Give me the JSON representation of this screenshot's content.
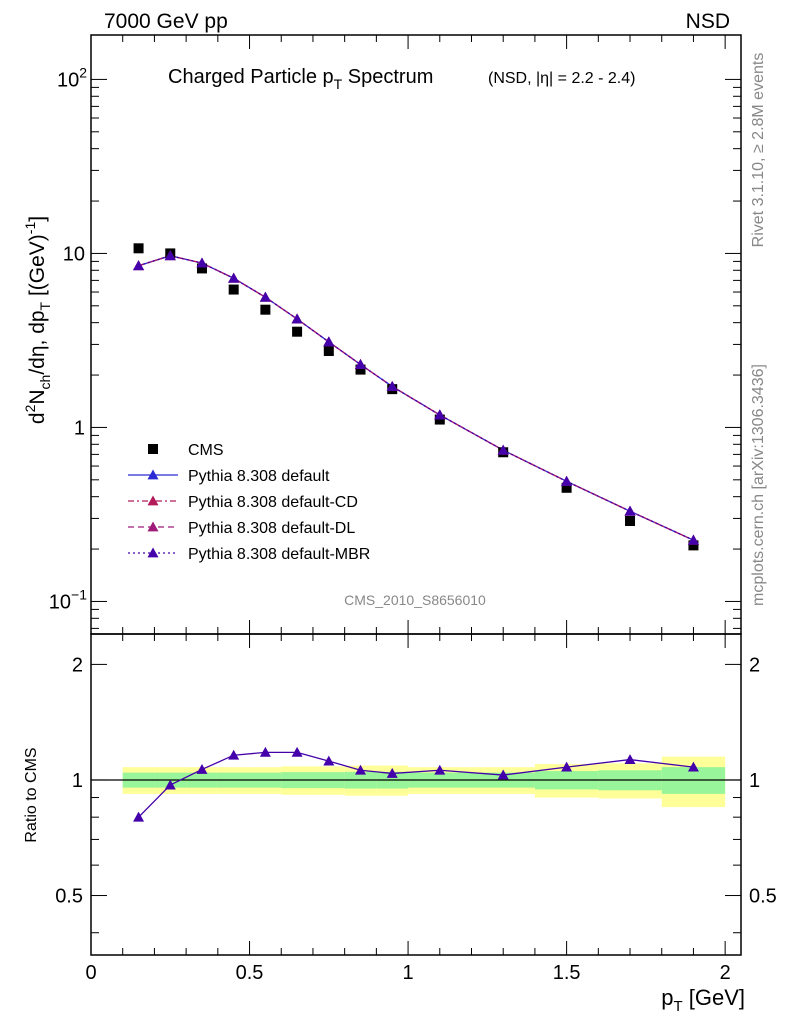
{
  "header": {
    "left": "7000 GeV pp",
    "right": "NSD"
  },
  "title": {
    "main": "Charged Particle p",
    "main_sub": "T",
    "main_tail": " Spectrum",
    "cond": "(NSD, |η| = 2.2 - 2.4)"
  },
  "side_labels": {
    "rivet": "Rivet 3.1.10, ≥ 2.8M events",
    "mcplots": "mcplots.cern.ch [arXiv:1306.3436]"
  },
  "analysis_tag": "CMS_2010_S8656010",
  "ratio_ylabel": "Ratio to CMS",
  "x_axis_label": "p",
  "x_axis_label_sub": "T",
  "x_axis_label_unit": " [GeV]",
  "y_axis_main": {
    "parts": [
      "d",
      "2",
      "N",
      "ch",
      "/dη, dp",
      "T",
      " [(GeV)",
      "-1",
      "]"
    ]
  },
  "colors": {
    "default": "#2b2bd6",
    "cd": "#b21a5a",
    "dl": "#a01a7a",
    "mbr": "#4400aa",
    "band_yellow": "#ffff99",
    "band_green": "#99f599",
    "data": "#000000"
  },
  "chart_data": [
    {
      "type": "scatter",
      "panel": "main",
      "xlim": [
        0,
        2.05
      ],
      "ylim": [
        0.065,
        180
      ],
      "yscale": "log",
      "x_ticks": [
        0,
        0.5,
        1,
        1.5,
        2
      ],
      "y_ticks": [
        {
          "value": 0.1,
          "label": "10",
          "sup": "−1"
        },
        {
          "value": 1,
          "label": "1",
          "sup": ""
        },
        {
          "value": 10,
          "label": "10",
          "sup": ""
        },
        {
          "value": 100,
          "label": "10",
          "sup": "2"
        }
      ],
      "legend_position": "left-middle",
      "series": [
        {
          "name": "CMS",
          "kind": "data",
          "x": [
            0.15,
            0.25,
            0.35,
            0.45,
            0.55,
            0.65,
            0.75,
            0.85,
            0.95,
            1.1,
            1.3,
            1.5,
            1.7,
            1.9
          ],
          "y": [
            10.7,
            10.0,
            8.2,
            6.2,
            4.75,
            3.55,
            2.75,
            2.15,
            1.66,
            1.11,
            0.72,
            0.45,
            0.29,
            0.21
          ]
        },
        {
          "name": "Pythia 8.308 default",
          "kind": "mc",
          "style": "solid",
          "x": [
            0.15,
            0.25,
            0.35,
            0.45,
            0.55,
            0.65,
            0.75,
            0.85,
            0.95,
            1.1,
            1.3,
            1.5,
            1.7,
            1.9
          ],
          "y": [
            8.5,
            9.7,
            8.8,
            7.2,
            5.6,
            4.2,
            3.1,
            2.3,
            1.72,
            1.18,
            0.74,
            0.49,
            0.33,
            0.225
          ]
        },
        {
          "name": "Pythia 8.308 default-CD",
          "kind": "mc",
          "style": "dashdot",
          "x": [
            0.15,
            0.25,
            0.35,
            0.45,
            0.55,
            0.65,
            0.75,
            0.85,
            0.95,
            1.1,
            1.3,
            1.5,
            1.7,
            1.9
          ],
          "y": [
            8.5,
            9.7,
            8.8,
            7.2,
            5.6,
            4.2,
            3.1,
            2.3,
            1.72,
            1.18,
            0.74,
            0.49,
            0.33,
            0.225
          ]
        },
        {
          "name": "Pythia 8.308 default-DL",
          "kind": "mc",
          "style": "dashed",
          "x": [
            0.15,
            0.25,
            0.35,
            0.45,
            0.55,
            0.65,
            0.75,
            0.85,
            0.95,
            1.1,
            1.3,
            1.5,
            1.7,
            1.9
          ],
          "y": [
            8.5,
            9.7,
            8.8,
            7.2,
            5.6,
            4.2,
            3.1,
            2.3,
            1.72,
            1.18,
            0.74,
            0.49,
            0.33,
            0.225
          ]
        },
        {
          "name": "Pythia 8.308 default-MBR",
          "kind": "mc",
          "style": "dotted",
          "x": [
            0.15,
            0.25,
            0.35,
            0.45,
            0.55,
            0.65,
            0.75,
            0.85,
            0.95,
            1.1,
            1.3,
            1.5,
            1.7,
            1.9
          ],
          "y": [
            8.5,
            9.7,
            8.8,
            7.2,
            5.6,
            4.2,
            3.1,
            2.3,
            1.72,
            1.18,
            0.74,
            0.49,
            0.33,
            0.225
          ]
        }
      ]
    },
    {
      "type": "line",
      "panel": "ratio",
      "xlim": [
        0,
        2.05
      ],
      "ylim": [
        0.35,
        2.4
      ],
      "yscale": "log",
      "y_ticks": [
        0.5,
        1,
        2
      ],
      "x_ticks": [
        0,
        0.5,
        1,
        1.5,
        2
      ],
      "bands": {
        "bins": [
          [
            0.1,
            0.2
          ],
          [
            0.2,
            0.3
          ],
          [
            0.3,
            0.4
          ],
          [
            0.4,
            0.5
          ],
          [
            0.5,
            0.6
          ],
          [
            0.6,
            0.7
          ],
          [
            0.7,
            0.8
          ],
          [
            0.8,
            0.9
          ],
          [
            0.9,
            1.0
          ],
          [
            1.0,
            1.2
          ],
          [
            1.2,
            1.4
          ],
          [
            1.4,
            1.6
          ],
          [
            1.6,
            1.8
          ],
          [
            1.8,
            2.0
          ]
        ],
        "yellow_lo": [
          0.92,
          0.92,
          0.92,
          0.92,
          0.92,
          0.915,
          0.915,
          0.91,
          0.91,
          0.92,
          0.92,
          0.9,
          0.895,
          0.85
        ],
        "yellow_hi": [
          1.08,
          1.08,
          1.08,
          1.08,
          1.08,
          1.085,
          1.085,
          1.09,
          1.09,
          1.08,
          1.08,
          1.1,
          1.105,
          1.15
        ],
        "green_lo": [
          0.955,
          0.955,
          0.955,
          0.955,
          0.955,
          0.952,
          0.952,
          0.95,
          0.95,
          0.955,
          0.955,
          0.945,
          0.94,
          0.92
        ],
        "green_hi": [
          1.045,
          1.045,
          1.045,
          1.045,
          1.045,
          1.048,
          1.048,
          1.05,
          1.05,
          1.045,
          1.045,
          1.055,
          1.06,
          1.08
        ]
      },
      "x": [
        0.15,
        0.25,
        0.35,
        0.45,
        0.55,
        0.65,
        0.75,
        0.85,
        0.95,
        1.1,
        1.3,
        1.5,
        1.7,
        1.9
      ],
      "ratio": [
        0.8,
        0.97,
        1.065,
        1.16,
        1.18,
        1.18,
        1.12,
        1.06,
        1.04,
        1.06,
        1.03,
        1.08,
        1.13,
        1.08
      ]
    }
  ]
}
